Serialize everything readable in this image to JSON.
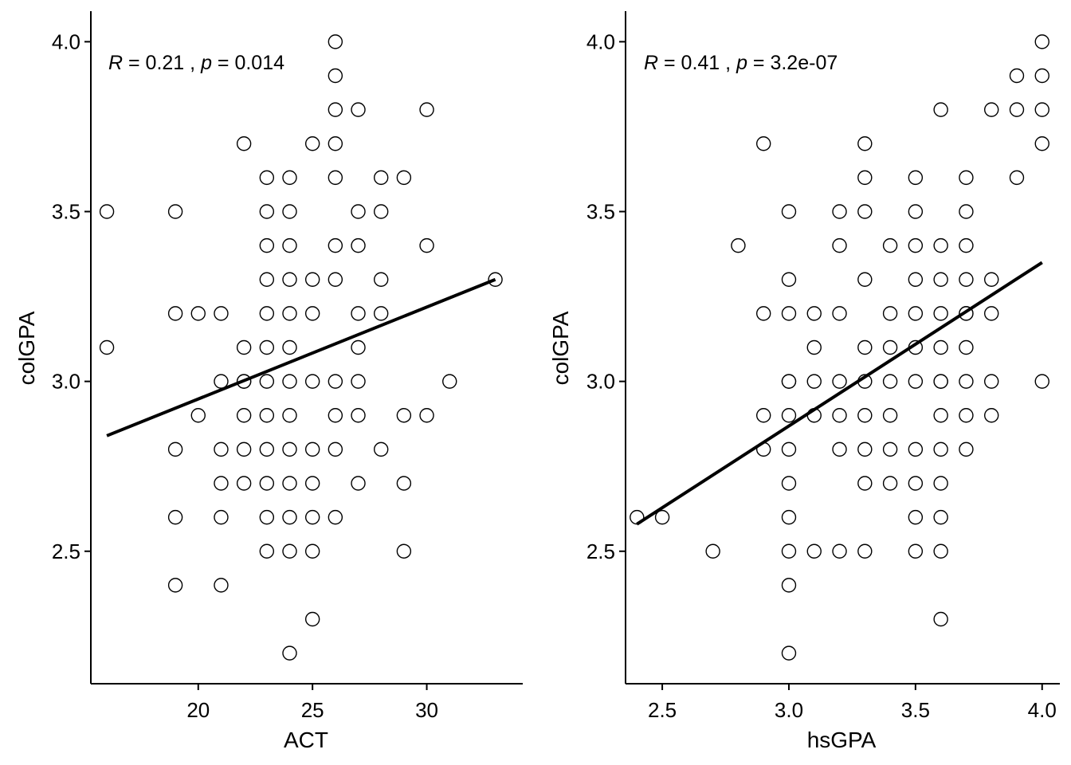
{
  "chart_data": [
    {
      "type": "scatter",
      "xlabel": "ACT",
      "ylabel": "colGPA",
      "xlim": [
        15.3,
        34.2
      ],
      "ylim": [
        2.11,
        4.09
      ],
      "xticks": [
        20,
        25,
        30
      ],
      "xtick_labels": [
        "20",
        "25",
        "30"
      ],
      "yticks": [
        2.5,
        3.0,
        3.5,
        4.0
      ],
      "ytick_labels": [
        "2.5",
        "3.0",
        "3.5",
        "4.0"
      ],
      "annotation": {
        "r_label": "R",
        "r_text": " = 0.21 , ",
        "p_label": "p",
        "p_text": " = 0.014"
      },
      "regression_line": {
        "x": [
          16,
          33
        ],
        "y": [
          2.84,
          3.3
        ]
      },
      "grid": false,
      "x": [
        16,
        16,
        19,
        19,
        19,
        19,
        19,
        20,
        20,
        21,
        21,
        21,
        21,
        21,
        21,
        22,
        22,
        22,
        22,
        22,
        22,
        22,
        23,
        23,
        23,
        23,
        23,
        23,
        23,
        23,
        23,
        23,
        23,
        23,
        24,
        24,
        24,
        24,
        24,
        24,
        24,
        24,
        24,
        24,
        24,
        24,
        24,
        25,
        25,
        25,
        25,
        25,
        25,
        25,
        25,
        25,
        26,
        26,
        26,
        26,
        26,
        26,
        26,
        26,
        26,
        26,
        26,
        27,
        27,
        27,
        27,
        27,
        27,
        27,
        27,
        28,
        28,
        28,
        28,
        28,
        29,
        29,
        29,
        29,
        30,
        30,
        30,
        31,
        33
      ],
      "y": [
        3.5,
        3.1,
        3.5,
        3.2,
        2.8,
        2.6,
        2.4,
        3.2,
        2.9,
        3.2,
        3.0,
        2.8,
        2.7,
        2.6,
        2.4,
        3.7,
        3.1,
        3.0,
        2.9,
        2.8,
        2.7,
        3.0,
        3.6,
        3.5,
        3.4,
        3.3,
        3.2,
        3.1,
        3.0,
        2.9,
        2.8,
        2.7,
        2.6,
        2.5,
        3.6,
        3.5,
        3.4,
        3.3,
        3.2,
        3.1,
        3.0,
        2.9,
        2.8,
        2.7,
        2.6,
        2.5,
        2.2,
        3.7,
        3.3,
        3.2,
        3.0,
        2.8,
        2.7,
        2.6,
        2.5,
        2.3,
        4.0,
        3.9,
        3.8,
        3.7,
        3.6,
        3.4,
        3.3,
        3.0,
        2.9,
        2.8,
        2.6,
        3.8,
        3.5,
        3.4,
        3.2,
        3.1,
        3.0,
        2.9,
        2.7,
        3.6,
        3.5,
        3.3,
        3.2,
        2.8,
        3.6,
        2.9,
        2.7,
        2.5,
        3.8,
        3.4,
        2.9,
        3.0,
        3.3
      ]
    },
    {
      "type": "scatter",
      "xlabel": "hsGPA",
      "ylabel": "colGPA",
      "xlim": [
        2.355,
        4.07
      ],
      "ylim": [
        2.11,
        4.09
      ],
      "xticks": [
        2.5,
        3.0,
        3.5,
        4.0
      ],
      "xtick_labels": [
        "2.5",
        "3.0",
        "3.5",
        "4.0"
      ],
      "yticks": [
        2.5,
        3.0,
        3.5,
        4.0
      ],
      "ytick_labels": [
        "2.5",
        "3.0",
        "3.5",
        "4.0"
      ],
      "annotation": {
        "r_label": "R",
        "r_text": " = 0.41 , ",
        "p_label": "p",
        "p_text": " = 3.2e-07"
      },
      "regression_line": {
        "x": [
          2.4,
          4.0
        ],
        "y": [
          2.58,
          3.35
        ]
      },
      "grid": false,
      "x": [
        2.4,
        2.5,
        2.7,
        2.8,
        2.9,
        2.9,
        2.9,
        2.9,
        3.0,
        3.0,
        3.0,
        3.0,
        3.0,
        3.0,
        3.0,
        3.0,
        3.0,
        3.0,
        3.0,
        3.0,
        3.1,
        3.1,
        3.1,
        3.1,
        3.1,
        3.2,
        3.2,
        3.2,
        3.2,
        3.2,
        3.2,
        3.2,
        3.3,
        3.3,
        3.3,
        3.3,
        3.3,
        3.3,
        3.3,
        3.3,
        3.3,
        3.3,
        3.4,
        3.4,
        3.4,
        3.4,
        3.4,
        3.4,
        3.4,
        3.5,
        3.5,
        3.5,
        3.5,
        3.5,
        3.5,
        3.5,
        3.5,
        3.5,
        3.5,
        3.5,
        3.6,
        3.6,
        3.6,
        3.6,
        3.6,
        3.6,
        3.6,
        3.6,
        3.6,
        3.6,
        3.6,
        3.6,
        3.6,
        3.7,
        3.7,
        3.7,
        3.7,
        3.7,
        3.7,
        3.7,
        3.7,
        3.7,
        3.7,
        3.8,
        3.8,
        3.8,
        3.8,
        3.8,
        3.9,
        3.9,
        3.9,
        4.0,
        4.0,
        4.0,
        4.0,
        4.0
      ],
      "y": [
        2.6,
        2.6,
        2.5,
        3.4,
        3.7,
        3.2,
        2.9,
        2.8,
        3.5,
        3.3,
        3.2,
        3.0,
        2.9,
        2.8,
        2.7,
        2.6,
        2.5,
        2.4,
        2.2,
        3.0,
        3.2,
        3.1,
        3.0,
        2.9,
        2.5,
        3.5,
        3.4,
        3.2,
        3.0,
        2.9,
        2.8,
        2.5,
        3.7,
        3.6,
        3.5,
        3.3,
        3.1,
        3.0,
        2.9,
        2.8,
        2.7,
        2.5,
        3.4,
        3.2,
        3.1,
        3.0,
        2.9,
        2.8,
        2.7,
        3.6,
        3.5,
        3.4,
        3.3,
        3.2,
        3.1,
        3.0,
        2.8,
        2.7,
        2.6,
        2.5,
        3.8,
        3.4,
        3.3,
        3.2,
        3.1,
        3.0,
        2.9,
        2.8,
        2.7,
        2.6,
        2.5,
        2.3,
        3.0,
        3.6,
        3.5,
        3.4,
        3.3,
        3.2,
        3.1,
        3.0,
        2.9,
        2.8,
        3.2,
        3.8,
        3.3,
        3.2,
        3.0,
        2.9,
        3.9,
        3.8,
        3.6,
        4.0,
        3.9,
        3.8,
        3.7,
        3.0
      ]
    }
  ]
}
